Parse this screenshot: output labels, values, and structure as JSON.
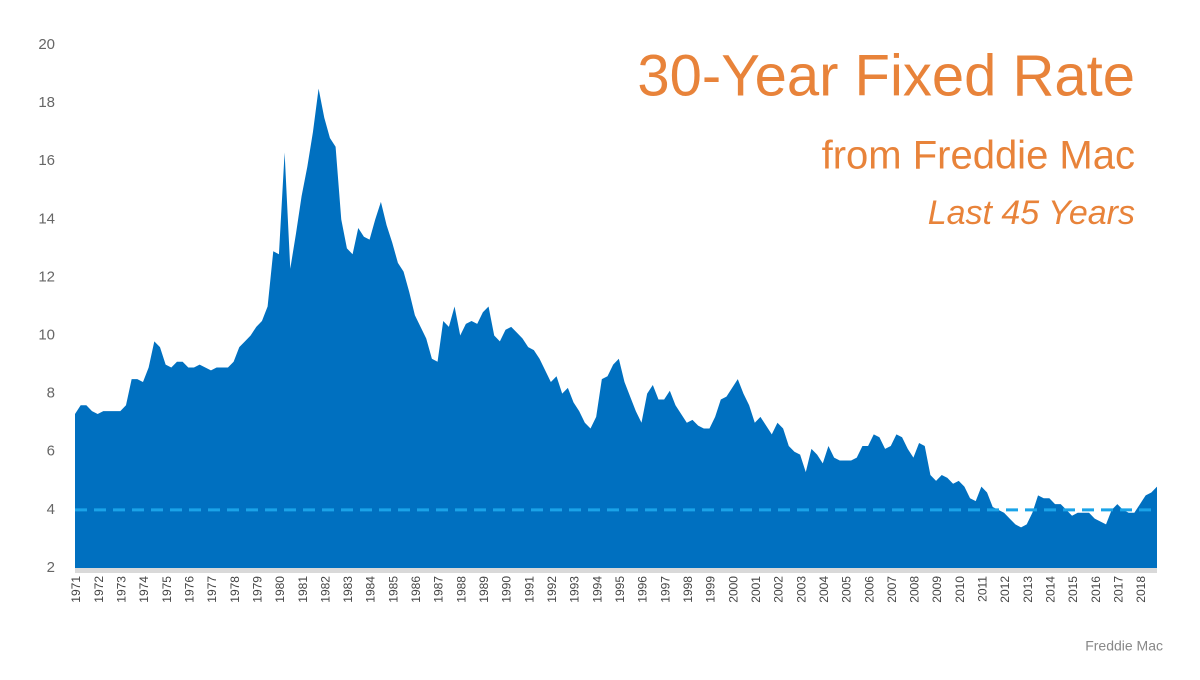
{
  "chart_data": {
    "type": "area",
    "title": "30-Year Fixed Rate",
    "subtitle": "from Freddie Mac",
    "annotation": "Last 45 Years",
    "source": "Freddie Mac",
    "title_color": "#e8833a",
    "categories": [
      "1971",
      null,
      null,
      null,
      "1972",
      null,
      null,
      null,
      "1973",
      null,
      null,
      null,
      "1974",
      null,
      null,
      null,
      "1975",
      null,
      null,
      null,
      "1976",
      null,
      null,
      null,
      "1977",
      null,
      null,
      null,
      "1978",
      null,
      null,
      null,
      "1979",
      null,
      null,
      null,
      "1980",
      null,
      null,
      null,
      "1981",
      null,
      null,
      null,
      "1982",
      null,
      null,
      null,
      "1983",
      null,
      null,
      null,
      "1984",
      null,
      null,
      null,
      "1985",
      null,
      null,
      null,
      "1986",
      null,
      null,
      null,
      "1987",
      null,
      null,
      null,
      "1988",
      null,
      null,
      null,
      "1989",
      null,
      null,
      null,
      "1990",
      null,
      null,
      null,
      "1991",
      null,
      null,
      null,
      "1992",
      null,
      null,
      null,
      "1993",
      null,
      null,
      null,
      "1994",
      null,
      null,
      null,
      "1995",
      null,
      null,
      null,
      "1996",
      null,
      null,
      null,
      "1997",
      null,
      null,
      null,
      "1998",
      null,
      null,
      null,
      "1999",
      null,
      null,
      null,
      "2000",
      null,
      null,
      null,
      "2001",
      null,
      null,
      null,
      "2002",
      null,
      null,
      null,
      "2003",
      null,
      null,
      null,
      "2004",
      null,
      null,
      null,
      "2005",
      null,
      null,
      null,
      "2006",
      null,
      null,
      null,
      "2007",
      null,
      null,
      null,
      "2008",
      null,
      null,
      null,
      "2009",
      null,
      null,
      null,
      "2010",
      null,
      null,
      null,
      "2011",
      null,
      null,
      null,
      "2012",
      null,
      null,
      null,
      "2013",
      null,
      null,
      null,
      "2014",
      null,
      null,
      null,
      "2015",
      null,
      null,
      null,
      "2016",
      null,
      null,
      null,
      "2017",
      null,
      null,
      null,
      "2018",
      null,
      null,
      null
    ],
    "series": [
      {
        "color": "#0070c0",
        "values": [
          7.3,
          7.6,
          7.6,
          7.4,
          7.3,
          7.4,
          7.4,
          7.4,
          7.4,
          7.6,
          8.5,
          8.5,
          8.4,
          8.9,
          9.8,
          9.6,
          9.0,
          8.9,
          9.1,
          9.1,
          8.9,
          8.9,
          9.0,
          8.9,
          8.8,
          8.9,
          8.9,
          8.9,
          9.1,
          9.6,
          9.8,
          10.0,
          10.3,
          10.5,
          11.0,
          12.9,
          12.8,
          16.3,
          12.3,
          13.5,
          14.8,
          15.8,
          17.0,
          18.5,
          17.5,
          16.8,
          16.5,
          14.0,
          13.0,
          12.8,
          13.7,
          13.4,
          13.3,
          14.0,
          14.6,
          13.8,
          13.2,
          12.5,
          12.2,
          11.5,
          10.7,
          10.3,
          9.9,
          9.2,
          9.1,
          10.5,
          10.3,
          11.0,
          10.0,
          10.4,
          10.5,
          10.4,
          10.8,
          11.0,
          10.0,
          9.8,
          10.2,
          10.3,
          10.1,
          9.9,
          9.6,
          9.5,
          9.2,
          8.8,
          8.4,
          8.6,
          8.0,
          8.2,
          7.7,
          7.4,
          7.0,
          6.8,
          7.2,
          8.5,
          8.6,
          9.0,
          9.2,
          8.4,
          7.9,
          7.4,
          7.0,
          8.0,
          8.3,
          7.8,
          7.8,
          8.1,
          7.6,
          7.3,
          7.0,
          7.1,
          6.9,
          6.8,
          6.8,
          7.2,
          7.8,
          7.9,
          8.2,
          8.5,
          8.0,
          7.6,
          7.0,
          7.2,
          6.9,
          6.6,
          7.0,
          6.8,
          6.2,
          6.0,
          5.9,
          5.3,
          6.1,
          5.9,
          5.6,
          6.2,
          5.8,
          5.7,
          5.7,
          5.7,
          5.8,
          6.2,
          6.2,
          6.6,
          6.5,
          6.1,
          6.2,
          6.6,
          6.5,
          6.1,
          5.8,
          6.3,
          6.2,
          5.2,
          5.0,
          5.2,
          5.1,
          4.9,
          5.0,
          4.8,
          4.4,
          4.3,
          4.8,
          4.6,
          4.1,
          4.0,
          3.9,
          3.7,
          3.5,
          3.4,
          3.5,
          3.9,
          4.5,
          4.4,
          4.4,
          4.2,
          4.2,
          4.0,
          3.8,
          3.9,
          3.9,
          3.9,
          3.7,
          3.6,
          3.5,
          4.0,
          4.2,
          4.0,
          3.9,
          3.9,
          4.2,
          4.5,
          4.6,
          4.8
        ]
      }
    ],
    "reference_line": {
      "value": 4,
      "color": "#1aa3e8"
    },
    "ylim": [
      2,
      20
    ],
    "yticks": [
      2,
      4,
      6,
      8,
      10,
      12,
      14,
      16,
      18,
      20
    ],
    "grid": false
  }
}
